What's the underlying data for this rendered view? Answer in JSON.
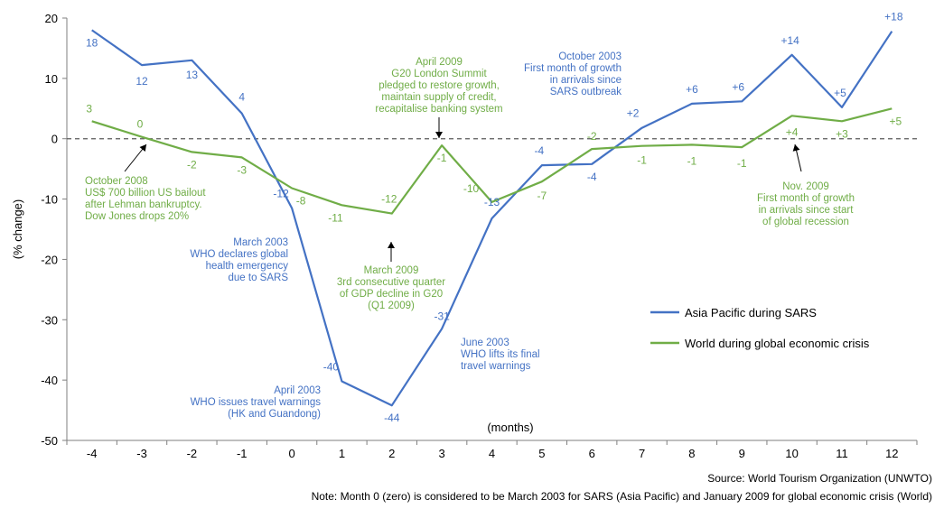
{
  "chart_data": {
    "type": "line",
    "ylabel": "(% change)",
    "xlabel": "(months)",
    "ylim": [
      -50,
      20
    ],
    "yticks": [
      20,
      10,
      0,
      -10,
      -20,
      -30,
      -40,
      -50
    ],
    "x": [
      -4,
      -3,
      -2,
      -1,
      0,
      1,
      2,
      3,
      4,
      5,
      6,
      7,
      8,
      9,
      10,
      11,
      12
    ],
    "xtick_labels": [
      "-4",
      "-3",
      "-2",
      "-1",
      "0",
      "1",
      "2",
      "3",
      "4",
      "5",
      "6",
      "7",
      "8",
      "9",
      "10",
      "11",
      "12"
    ],
    "series": [
      {
        "name": "Asia Pacific during SARS",
        "color": "#4472C4",
        "values": [
          18,
          12.2,
          13,
          4.2,
          -11.5,
          -40.2,
          -44.2,
          -31.5,
          -13.2,
          -4.4,
          -4.2,
          1.8,
          5.8,
          6.2,
          13.9,
          5.2,
          17.8
        ],
        "labels": [
          "18",
          "12",
          "13",
          "4",
          "-12",
          "-40",
          "-44",
          "-31",
          "-13",
          "-4",
          "-4",
          "+2",
          "+6",
          "+6",
          "+14",
          "+5",
          "+18"
        ]
      },
      {
        "name": "World during global economic crisis",
        "color": "#70AD47",
        "values": [
          2.9,
          0.3,
          -2.2,
          -3.1,
          -8.2,
          -11.0,
          -12.4,
          -1.1,
          -10.5,
          -7.1,
          -1.7,
          -1.2,
          -1.0,
          -1.4,
          3.8,
          2.9,
          5.0
        ],
        "labels": [
          "3",
          "0",
          "-2",
          "-3",
          "-8",
          "-11",
          "-12",
          "-1",
          "-10",
          "-7",
          "-2",
          "-1",
          "-1",
          "-1",
          "+4",
          "+3",
          "+5"
        ]
      }
    ],
    "legend_position": "right",
    "annotations": [
      {
        "color": "#4472C4",
        "lines": [
          "March 2003",
          "WHO declares global",
          "health emergency",
          "due to SARS"
        ]
      },
      {
        "color": "#4472C4",
        "lines": [
          "April 2003",
          "WHO issues travel warnings",
          "(HK and Guandong)"
        ]
      },
      {
        "color": "#4472C4",
        "lines": [
          "June 2003",
          "WHO lifts its final",
          "travel warnings"
        ]
      },
      {
        "color": "#4472C4",
        "lines": [
          "October 2003",
          "First month of growth",
          "in arrivals since",
          "SARS outbreak"
        ]
      },
      {
        "color": "#70AD47",
        "lines": [
          "October 2008",
          "US$ 700 billion US bailout",
          "after Lehman bankruptcy.",
          "Dow Jones drops 20%"
        ]
      },
      {
        "color": "#70AD47",
        "lines": [
          "March 2009",
          "3rd consecutive quarter",
          "of GDP decline in G20",
          "(Q1 2009)"
        ]
      },
      {
        "color": "#70AD47",
        "lines": [
          "April 2009",
          "G20 London Summit",
          "pledged to restore growth,",
          "maintain supply of credit,",
          "recapitalise banking system"
        ]
      },
      {
        "color": "#70AD47",
        "lines": [
          "Nov. 2009",
          "First month of growth",
          "in arrivals since start",
          "of global recession"
        ]
      }
    ],
    "source": "Source: World Tourism Organization (UNWTO)",
    "note": "Note: Month 0 (zero) is considered to be March 2003 for SARS (Asia Pacific) and January 2009 for global economic crisis (World)"
  }
}
